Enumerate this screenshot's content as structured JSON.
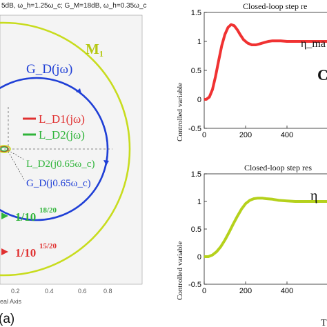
{
  "colors": {
    "nyquist_gd": "#1f3fd6",
    "nyquist_m1": "#c8dc1e",
    "ld1": "#e03030",
    "ld2": "#2fb43a",
    "step1": "#f03232",
    "step2": "#b5d11c",
    "panel_bg": "#f4f4f4"
  },
  "left_panel": {
    "header": "5dB, ω_h=1.25ω_c; G_M=18dB, ω_h=0.35ω_c",
    "m1_label": "M₁",
    "gd_label": "G_D(jω)",
    "legend": [
      {
        "label": "L_D1(jω)",
        "color": "ld1"
      },
      {
        "label": "L_D2(jω)",
        "color": "ld2"
      }
    ],
    "point_labels": [
      "L_D2(j0.65ω_c)",
      "G_D(j0.65ω_c)"
    ],
    "ratio_labels": [
      {
        "base": "1/10",
        "exp": "18/20",
        "color": "ld2"
      },
      {
        "base": "1/10",
        "exp": "15/20",
        "color": "ld1"
      }
    ],
    "tick_labels": [
      "0.2",
      "0.4",
      "0.6",
      "0.8"
    ],
    "axis_label": "eal Axis",
    "caption": "(a)"
  },
  "chart_data": [
    {
      "type": "line",
      "title": "Closed-loop step re",
      "ylabel": "Controlled variable",
      "xlim": [
        0,
        600
      ],
      "ylim": [
        -0.5,
        1.5
      ],
      "x_ticks": [
        0,
        200,
        400
      ],
      "y_ticks": [
        -0.5,
        0,
        0.5,
        1,
        1.5
      ],
      "annotation": "η_ma",
      "side_label": "C",
      "series": [
        {
          "color": "step1",
          "x": [
            0,
            10,
            25,
            40,
            55,
            70,
            85,
            100,
            115,
            130,
            145,
            160,
            175,
            190,
            210,
            230,
            250,
            270,
            290,
            310,
            330,
            350,
            370,
            400,
            430,
            460,
            500,
            540,
            580,
            600
          ],
          "y": [
            0,
            0.0,
            0.04,
            0.17,
            0.4,
            0.67,
            0.93,
            1.12,
            1.24,
            1.29,
            1.27,
            1.2,
            1.11,
            1.03,
            0.97,
            0.94,
            0.94,
            0.96,
            0.98,
            1.0,
            1.01,
            1.01,
            1.01,
            1.0,
            1.0,
            1.0,
            1.0,
            1.0,
            1.0,
            1.0
          ]
        }
      ]
    },
    {
      "type": "line",
      "title": "Closed-loop step res",
      "ylabel": "Controlled variable",
      "xlim": [
        0,
        600
      ],
      "ylim": [
        -0.5,
        1.5
      ],
      "x_ticks": [
        0,
        200,
        400
      ],
      "y_ticks": [
        -0.5,
        0,
        0.5,
        1,
        1.5
      ],
      "annotation": "η",
      "side_label": "T",
      "series": [
        {
          "color": "step2",
          "x": [
            0,
            20,
            40,
            60,
            80,
            100,
            120,
            140,
            160,
            180,
            200,
            220,
            240,
            260,
            280,
            300,
            330,
            360,
            400,
            440,
            480,
            520,
            560,
            600
          ],
          "y": [
            0,
            0.0,
            0.03,
            0.09,
            0.18,
            0.3,
            0.44,
            0.59,
            0.73,
            0.86,
            0.96,
            1.02,
            1.05,
            1.06,
            1.06,
            1.05,
            1.04,
            1.02,
            1.01,
            1.0,
            1.0,
            1.0,
            1.0,
            1.0
          ]
        }
      ]
    }
  ]
}
